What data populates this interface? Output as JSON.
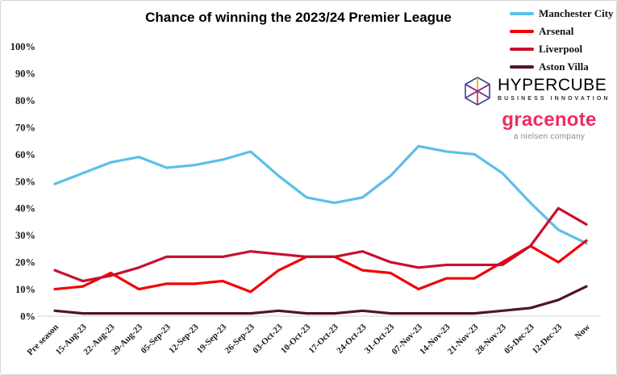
{
  "title": "Chance of winning the 2023/24 Premier League",
  "axis": {
    "ytick_labels": [
      "0%",
      "10%",
      "20%",
      "30%",
      "40%",
      "50%",
      "60%",
      "70%",
      "80%",
      "90%",
      "100%"
    ],
    "axis_line_color": "#d9d9d9",
    "tick_color": "#1a1a1a"
  },
  "chart_data": {
    "type": "line",
    "title": "Chance of winning the 2023/24 Premier League",
    "categories": [
      "Pre season",
      "15-Aug-23",
      "22-Aug-23",
      "29-Aug-23",
      "05-Sep-23",
      "12-Sep-23",
      "19-Sep-23",
      "26-Sep-23",
      "03-Oct-23",
      "10-Oct-23",
      "17-Oct-23",
      "24-Oct-23",
      "31-Oct-23",
      "07-Nov-23",
      "14-Nov-23",
      "21-Nov-23",
      "28-Nov-23",
      "05-Dec-23",
      "12-Dec-23",
      "Now"
    ],
    "series": [
      {
        "name": "Manchester City",
        "color": "#5bc0e8",
        "values": [
          49,
          53,
          57,
          59,
          55,
          56,
          58,
          61,
          52,
          44,
          42,
          44,
          52,
          63,
          61,
          60,
          53,
          42,
          32,
          27
        ]
      },
      {
        "name": "Arsenal",
        "color": "#f20000",
        "values": [
          10,
          11,
          16,
          10,
          12,
          12,
          13,
          9,
          17,
          22,
          22,
          17,
          16,
          10,
          14,
          14,
          20,
          26,
          20,
          28
        ]
      },
      {
        "name": "Liverpool",
        "color": "#c8102e",
        "values": [
          17,
          13,
          15,
          18,
          22,
          22,
          22,
          24,
          23,
          22,
          22,
          24,
          20,
          18,
          19,
          19,
          19,
          26,
          40,
          34
        ]
      },
      {
        "name": "Aston Villa",
        "color": "#521230",
        "values": [
          2,
          1,
          1,
          1,
          1,
          1,
          1,
          1,
          2,
          1,
          1,
          2,
          1,
          1,
          1,
          1,
          2,
          3,
          6,
          11
        ]
      }
    ],
    "ylim": [
      0,
      100
    ],
    "ytick_step": 10,
    "grid": false,
    "legend_position": "top-right",
    "xlabel": "",
    "ylabel": ""
  },
  "branding": {
    "hypercube": {
      "name": "HYPERCUBE",
      "tagline": "BUSINESS INNOVATION",
      "cube_colors": {
        "blue": "#2b4b9b",
        "red": "#d42027",
        "yellow": "#f0a500",
        "purple": "#7b2d8b"
      }
    },
    "gracenote": {
      "name": "gracenote",
      "tagline": "a nielsen company",
      "color": "#ed2d61"
    }
  }
}
